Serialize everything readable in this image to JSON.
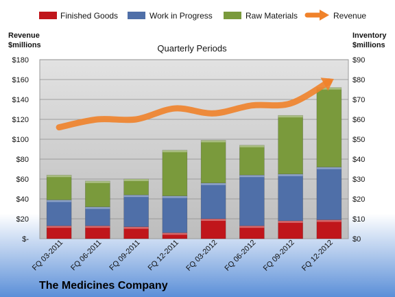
{
  "chart_data": {
    "type": "bar",
    "subtitle": "Quarterly Periods",
    "footer": "The Medicines Company",
    "categories": [
      "FQ 03-2011",
      "FQ 06-2011",
      "FQ 09-2011",
      "FQ 12-2011",
      "FQ 03-2012",
      "FQ 06-2012",
      "FQ 09-2012",
      "FQ 12-2012"
    ],
    "left_axis": {
      "label_line1": "Revenue",
      "label_line2": "$millions",
      "range": [
        0,
        180
      ],
      "ticks": [
        "$-",
        "$20",
        "$40",
        "$60",
        "$80",
        "$100",
        "$120",
        "$140",
        "$160",
        "$180"
      ]
    },
    "right_axis": {
      "label_line1": "Inventory",
      "label_line2": "$millions",
      "range": [
        0,
        90
      ],
      "ticks": [
        "$0",
        "$10",
        "$20",
        "$30",
        "$40",
        "$50",
        "$60",
        "$70",
        "$80",
        "$90"
      ]
    },
    "stacked": true,
    "series": [
      {
        "name": "Finished Goods",
        "axis": "right",
        "color": "#c0161b",
        "values": [
          6.5,
          6.5,
          6,
          3,
          10,
          6.5,
          9,
          9.5
        ]
      },
      {
        "name": "Work in Progress",
        "axis": "right",
        "color": "#4f6fa8",
        "values": [
          13,
          9.5,
          16,
          18.5,
          18,
          25.5,
          23.5,
          26.5
        ]
      },
      {
        "name": "Raw Materials",
        "axis": "right",
        "color": "#7a9a3c",
        "values": [
          12.5,
          13,
          8,
          23,
          21.5,
          15,
          29.5,
          40
        ]
      }
    ],
    "line_series": {
      "name": "Revenue",
      "axis": "left",
      "color": "#f0822a",
      "values": [
        112,
        120,
        120,
        131,
        126,
        134,
        136,
        158
      ]
    },
    "grid": true,
    "legend_position": "top"
  }
}
